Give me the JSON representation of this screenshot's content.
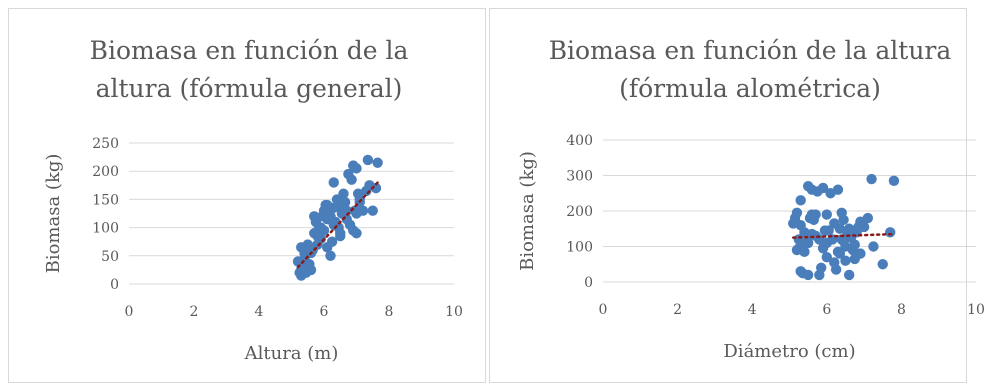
{
  "chart_data": [
    {
      "type": "scatter",
      "title": [
        "Biomasa en función de la",
        "altura (fórmula general)"
      ],
      "xlabel": "Altura (m)",
      "ylabel": "Biomasa (kg)",
      "xlim": [
        0,
        10
      ],
      "ylim": [
        0,
        250
      ],
      "xticks": [
        "0",
        "2",
        "4",
        "6",
        "8",
        "10"
      ],
      "yticks": [
        "0",
        "50",
        "100",
        "150",
        "200",
        "250"
      ],
      "grid": true,
      "trendline": {
        "type": "linear",
        "x": [
          5.2,
          7.7
        ],
        "y": [
          30,
          183
        ]
      },
      "series": [
        {
          "x": [
            5.2,
            5.25,
            5.3,
            5.3,
            5.35,
            5.4,
            5.45,
            5.5,
            5.55,
            5.6,
            5.6,
            5.65,
            5.7,
            5.75,
            5.8,
            5.85,
            5.9,
            5.95,
            6.0,
            6.0,
            6.05,
            6.1,
            6.1,
            6.15,
            6.2,
            6.25,
            6.3,
            6.3,
            6.35,
            6.4,
            6.45,
            6.5,
            6.5,
            6.55,
            6.6,
            6.65,
            6.7,
            6.75,
            6.8,
            6.85,
            6.9,
            6.95,
            7.0,
            7.0,
            7.05,
            7.1,
            7.2,
            7.3,
            7.35,
            7.5,
            7.6,
            7.65,
            5.3,
            5.5,
            5.7,
            5.9,
            6.1,
            6.3,
            6.5,
            6.7,
            6.9,
            7.1,
            5.4,
            5.8,
            6.2,
            6.6,
            7.0,
            7.4
          ],
          "y": [
            40,
            20,
            65,
            25,
            30,
            45,
            20,
            70,
            35,
            25,
            55,
            60,
            90,
            110,
            85,
            100,
            80,
            120,
            95,
            130,
            140,
            115,
            65,
            125,
            50,
            75,
            180,
            135,
            110,
            150,
            100,
            90,
            140,
            125,
            135,
            145,
            115,
            195,
            105,
            185,
            210,
            130,
            125,
            205,
            160,
            145,
            130,
            165,
            220,
            130,
            170,
            215,
            15,
            30,
            120,
            100,
            140,
            105,
            85,
            130,
            95,
            150,
            55,
            70,
            120,
            160,
            90,
            175
          ]
        }
      ]
    },
    {
      "type": "scatter",
      "title": [
        "Biomasa en función de la altura",
        "(fórmula alométrica)"
      ],
      "xlabel": "Diámetro (cm)",
      "ylabel": "Biomasa (kg)",
      "xlim": [
        0,
        10
      ],
      "ylim": [
        0,
        400
      ],
      "xticks": [
        "0",
        "2",
        "4",
        "6",
        "8",
        "10"
      ],
      "yticks": [
        "0",
        "100",
        "200",
        "300",
        "400"
      ],
      "grid": true,
      "trendline": {
        "type": "linear",
        "x": [
          5.1,
          7.8
        ],
        "y": [
          125,
          135
        ]
      },
      "series": [
        {
          "x": [
            5.1,
            5.15,
            5.2,
            5.2,
            5.25,
            5.3,
            5.3,
            5.35,
            5.4,
            5.4,
            5.45,
            5.5,
            5.5,
            5.55,
            5.6,
            5.6,
            5.65,
            5.7,
            5.75,
            5.8,
            5.85,
            5.9,
            5.9,
            5.95,
            6.0,
            6.0,
            6.05,
            6.1,
            6.15,
            6.2,
            6.25,
            6.3,
            6.3,
            6.35,
            6.4,
            6.4,
            6.45,
            6.5,
            6.5,
            6.55,
            6.6,
            6.6,
            6.65,
            6.7,
            6.75,
            6.8,
            6.85,
            6.9,
            7.0,
            7.1,
            7.2,
            7.25,
            7.5,
            7.7,
            7.8,
            5.3,
            5.5,
            5.7,
            5.8,
            6.0,
            6.2,
            6.35,
            6.55,
            6.75,
            5.25,
            5.6,
            6.45,
            6.9
          ],
          "y": [
            165,
            180,
            90,
            195,
            120,
            160,
            230,
            25,
            140,
            85,
            110,
            270,
            20,
            180,
            260,
            135,
            175,
            190,
            255,
            120,
            40,
            265,
            95,
            145,
            190,
            110,
            145,
            250,
            120,
            55,
            35,
            260,
            85,
            150,
            195,
            120,
            175,
            100,
            60,
            130,
            20,
            150,
            125,
            90,
            65,
            140,
            155,
            170,
            155,
            180,
            290,
            100,
            50,
            140,
            285,
            30,
            110,
            130,
            20,
            70,
            165,
            80,
            140,
            105,
            95,
            190,
            115,
            80
          ]
        }
      ]
    }
  ]
}
